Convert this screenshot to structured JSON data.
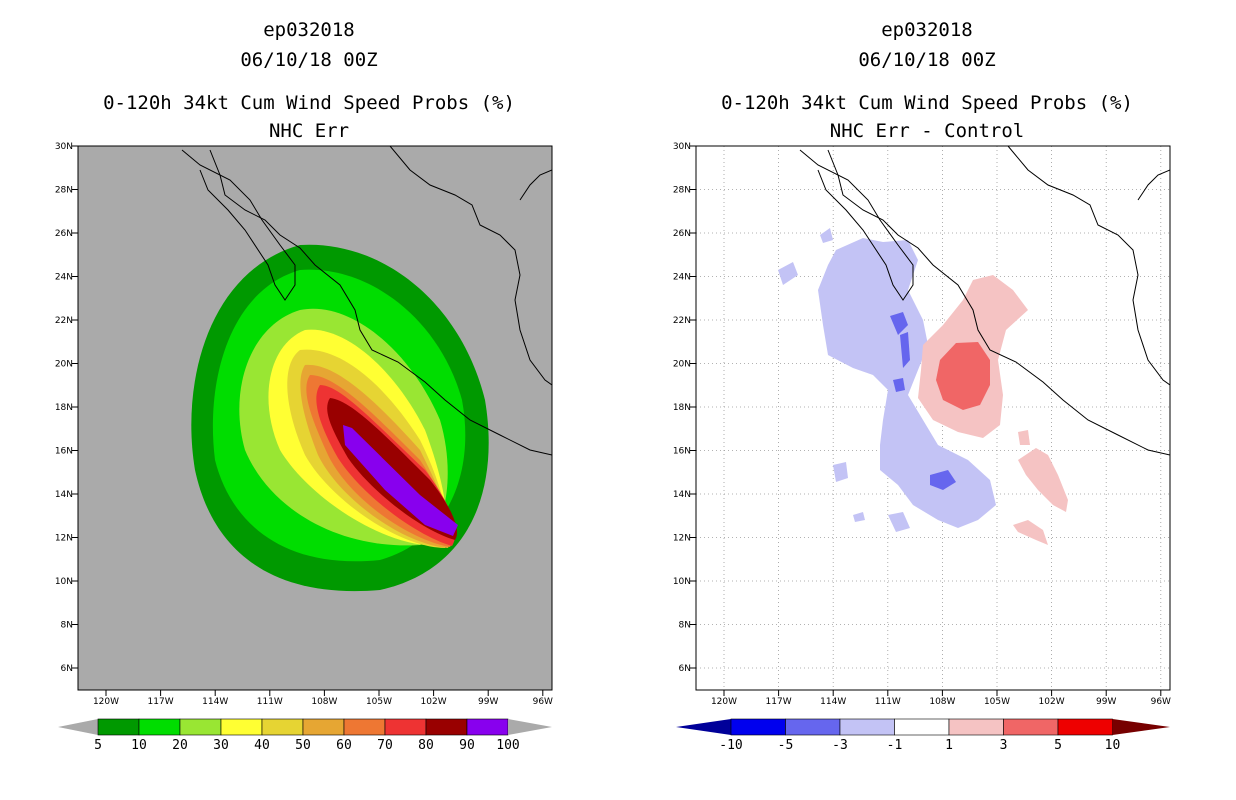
{
  "left": {
    "storm_id": "ep032018",
    "datetime": "06/10/18 00Z",
    "product": "0-120h 34kt Cum Wind Speed Probs (%)",
    "subtitle": "NHC Err",
    "colorbar_labels": [
      "5",
      "10",
      "20",
      "30",
      "40",
      "50",
      "60",
      "70",
      "80",
      "90",
      "100"
    ],
    "colors": [
      "#009900",
      "#00dd00",
      "#99e633",
      "#ffff33",
      "#e6d433",
      "#e6a633",
      "#ee7733",
      "#ee3333",
      "#990000",
      "#8800ee"
    ]
  },
  "right": {
    "storm_id": "ep032018",
    "datetime": "06/10/18 00Z",
    "product": "0-120h 34kt Cum Wind Speed Probs (%)",
    "subtitle": "NHC Err - Control",
    "colorbar_labels": [
      "-10",
      "-5",
      "-3",
      "-1",
      "1",
      "3",
      "5",
      "10"
    ],
    "colors": [
      "#000099",
      "#0000ee",
      "#6666ee",
      "#c3c3f5",
      "#ffffff",
      "#f5c3c3",
      "#f06666",
      "#ee0000",
      "#770000"
    ]
  },
  "axes": {
    "lat_labels": [
      "30N",
      "28N",
      "26N",
      "24N",
      "22N",
      "20N",
      "18N",
      "16N",
      "14N",
      "12N",
      "10N",
      "8N",
      "6N"
    ],
    "lon_labels": [
      "120W",
      "117W",
      "114W",
      "111W",
      "108W",
      "105W",
      "102W",
      "99W",
      "96W"
    ]
  }
}
